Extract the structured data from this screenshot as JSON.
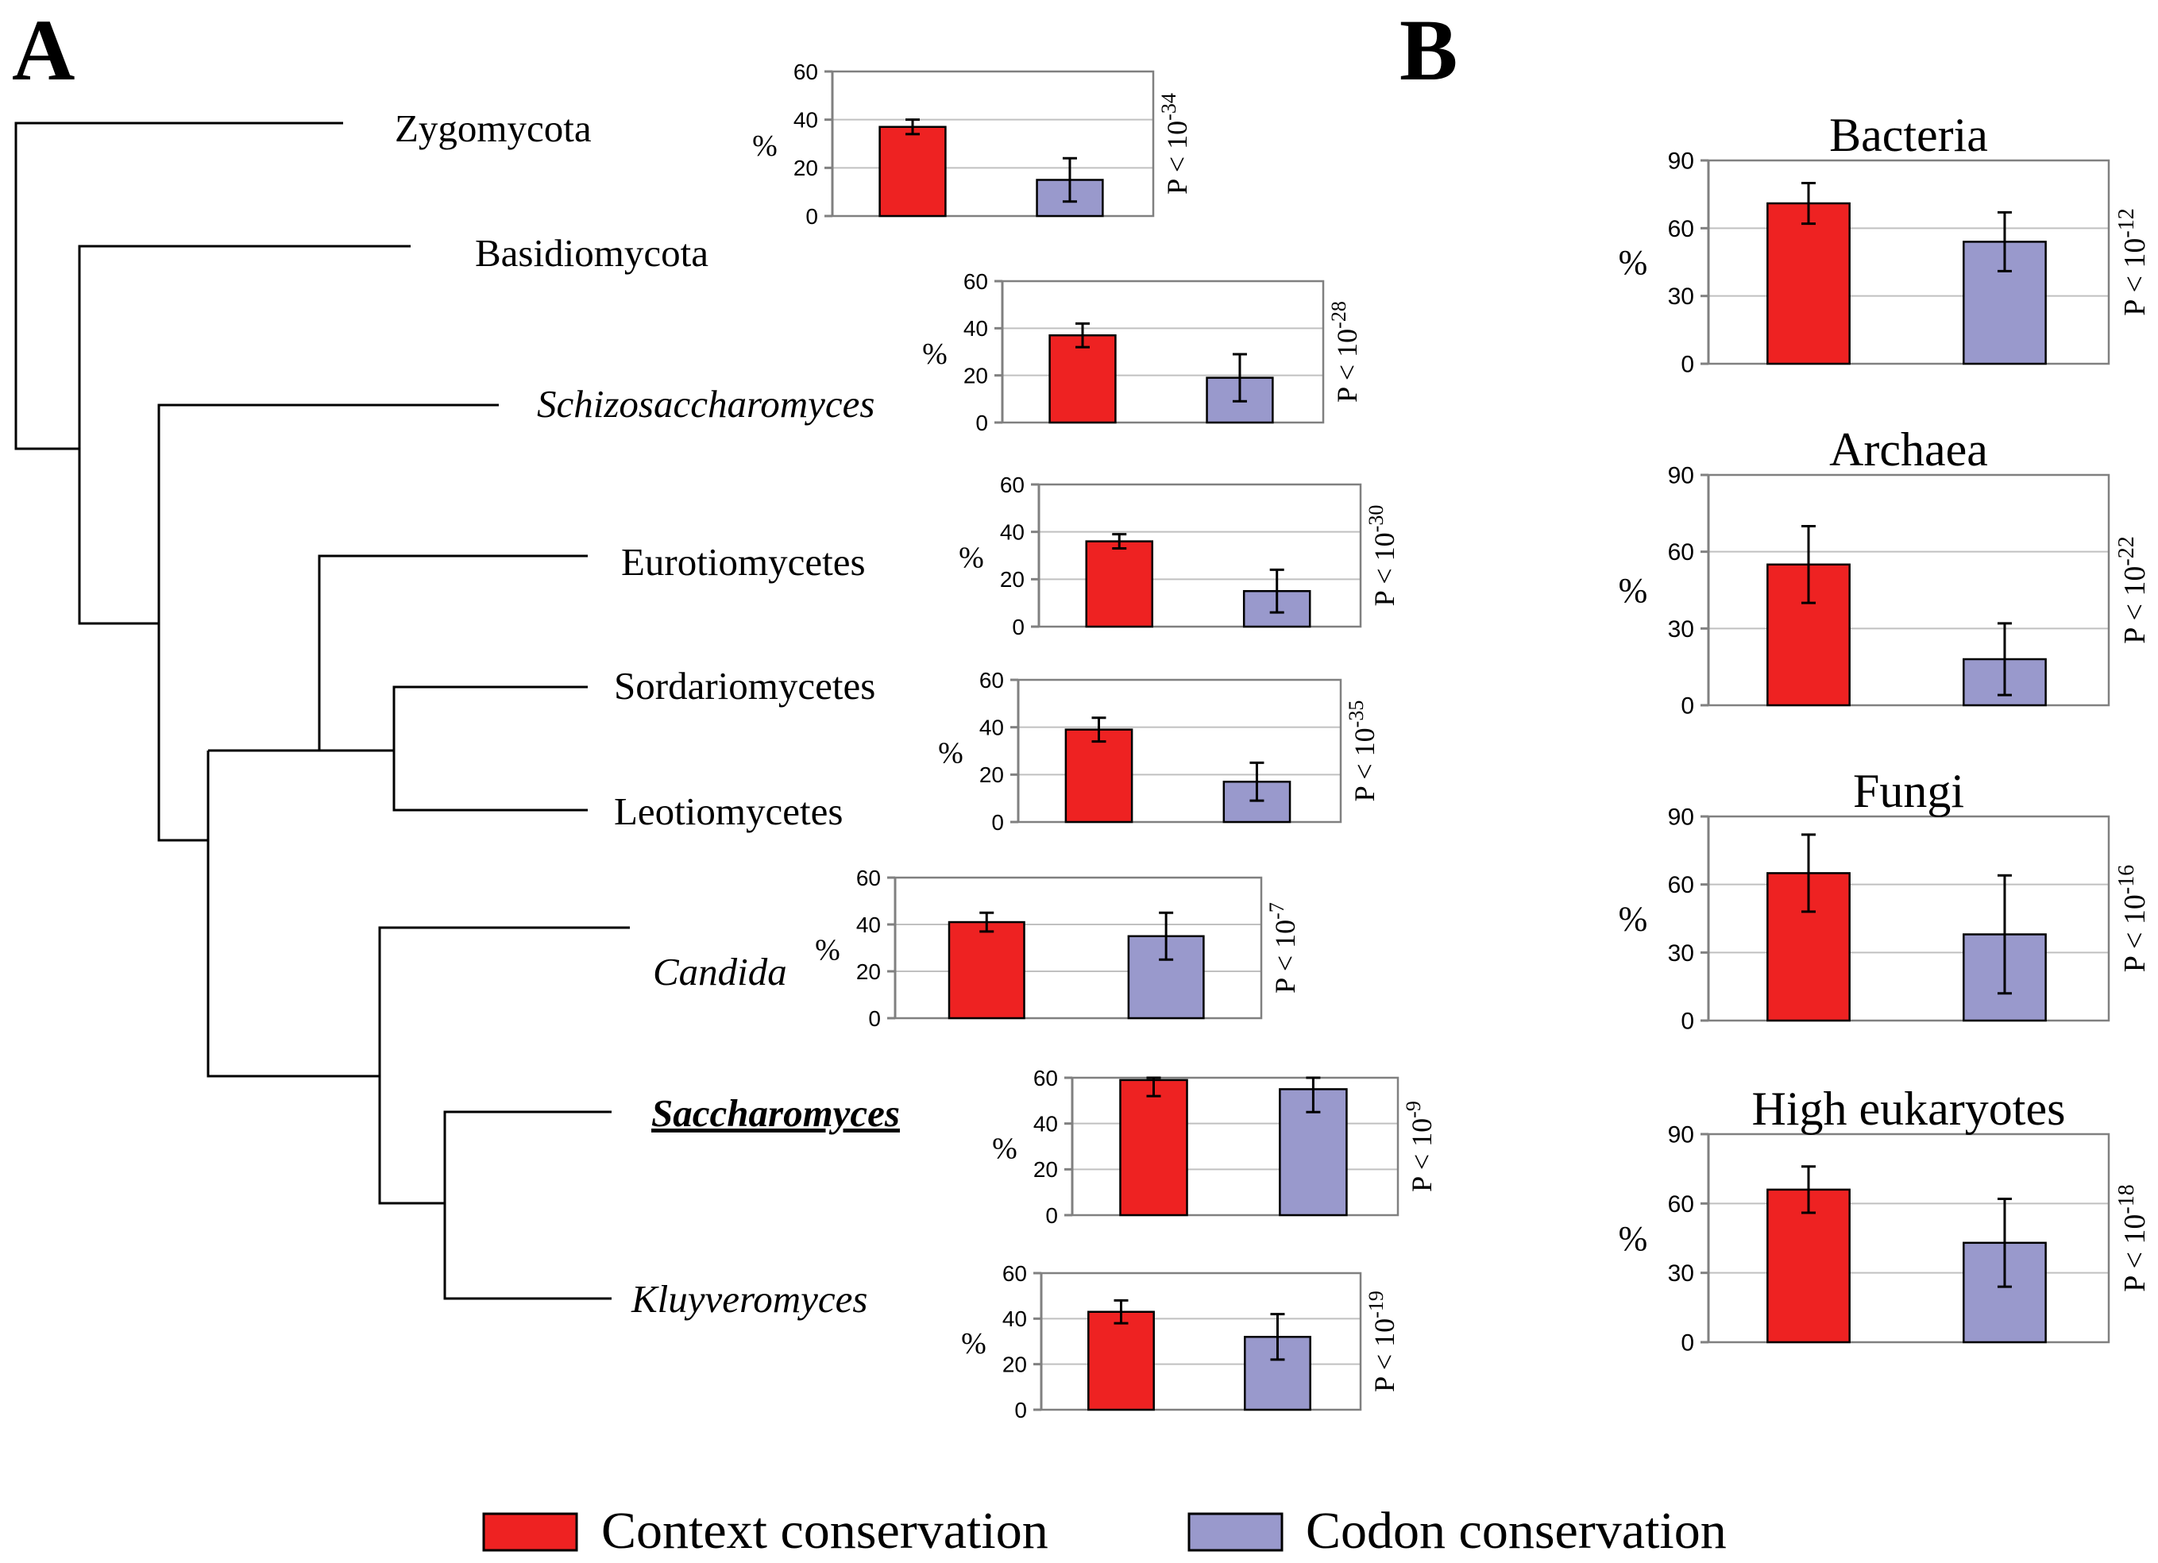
{
  "panel_labels": {
    "a": "A",
    "b": "B"
  },
  "colors": {
    "context": "#ee2222",
    "codon": "#9999cc",
    "frame": "#808080",
    "grid": "#c0c0c0",
    "line": "#000000"
  },
  "legend": {
    "context": "Context conservation",
    "codon": "Codon conservation"
  },
  "tree_taxa": [
    {
      "name": "Zygomycota",
      "italic": false,
      "bold": false
    },
    {
      "name": "Basidiomycota",
      "italic": false,
      "bold": false
    },
    {
      "name": "Schizosaccharomyces",
      "italic": true,
      "bold": false
    },
    {
      "name": "Eurotiomycetes",
      "italic": false,
      "bold": false
    },
    {
      "name": "Sordariomycetes",
      "italic": false,
      "bold": false
    },
    {
      "name": "Leotiomycetes",
      "italic": false,
      "bold": false
    },
    {
      "name": "Candida",
      "italic": true,
      "bold": false
    },
    {
      "name": "Saccharomyces",
      "italic": true,
      "bold": true,
      "underline": true
    },
    {
      "name": "Kluyveromyces",
      "italic": true,
      "bold": false
    },
    {
      "name": "",
      "italic": false,
      "bold": false
    }
  ],
  "chart_data": [
    {
      "type": "bar",
      "panel": "A",
      "ylabel": "%",
      "ylim": [
        0,
        60
      ],
      "yticks": [
        0,
        20,
        40,
        60
      ],
      "grid": true,
      "categories": [
        "Context conservation",
        "Codon conservation"
      ],
      "values": [
        37,
        15
      ],
      "errors": [
        3,
        9
      ],
      "pvalue": {
        "text": "P < 10",
        "exp": "-34"
      }
    },
    {
      "type": "bar",
      "panel": "A",
      "ylabel": "%",
      "ylim": [
        0,
        60
      ],
      "yticks": [
        0,
        20,
        40,
        60
      ],
      "grid": true,
      "categories": [
        "Context conservation",
        "Codon conservation"
      ],
      "values": [
        37,
        19
      ],
      "errors": [
        5,
        10
      ],
      "pvalue": {
        "text": "P < 10",
        "exp": "-28"
      }
    },
    {
      "type": "bar",
      "panel": "A",
      "ylabel": "%",
      "ylim": [
        0,
        60
      ],
      "yticks": [
        0,
        20,
        40,
        60
      ],
      "grid": true,
      "categories": [
        "Context conservation",
        "Codon conservation"
      ],
      "values": [
        36,
        15
      ],
      "errors": [
        3,
        9
      ],
      "pvalue": {
        "text": "P < 10",
        "exp": "-30"
      }
    },
    {
      "type": "bar",
      "panel": "A",
      "ylabel": "%",
      "ylim": [
        0,
        60
      ],
      "yticks": [
        0,
        20,
        40,
        60
      ],
      "grid": true,
      "categories": [
        "Context conservation",
        "Codon conservation"
      ],
      "values": [
        39,
        17
      ],
      "errors": [
        5,
        8
      ],
      "pvalue": {
        "text": "P < 10",
        "exp": "-35"
      }
    },
    {
      "type": "bar",
      "panel": "A",
      "ylabel": "%",
      "ylim": [
        0,
        60
      ],
      "yticks": [
        0,
        20,
        40,
        60
      ],
      "grid": true,
      "categories": [
        "Context conservation",
        "Codon conservation"
      ],
      "values": [
        41,
        35
      ],
      "errors": [
        4,
        10
      ],
      "pvalue": {
        "text": "P < 10",
        "exp": "-7"
      }
    },
    {
      "type": "bar",
      "panel": "A",
      "ylabel": "%",
      "ylim": [
        0,
        60
      ],
      "yticks": [
        0,
        20,
        40,
        60
      ],
      "grid": true,
      "categories": [
        "Context conservation",
        "Codon conservation"
      ],
      "values": [
        59,
        55
      ],
      "errors": [
        7,
        10
      ],
      "pvalue": {
        "text": "P < 10",
        "exp": "-9"
      }
    },
    {
      "type": "bar",
      "panel": "A",
      "ylabel": "%",
      "ylim": [
        0,
        60
      ],
      "yticks": [
        0,
        20,
        40,
        60
      ],
      "grid": true,
      "categories": [
        "Context conservation",
        "Codon conservation"
      ],
      "values": [
        43,
        32
      ],
      "errors": [
        5,
        10
      ],
      "pvalue": {
        "text": "P < 10",
        "exp": "-19"
      }
    },
    {
      "type": "bar",
      "panel": "B",
      "title": "Bacteria",
      "ylabel": "%",
      "ylim": [
        0,
        90
      ],
      "yticks": [
        0,
        30,
        60,
        90
      ],
      "grid": true,
      "categories": [
        "Context conservation",
        "Codon conservation"
      ],
      "values": [
        71,
        54
      ],
      "errors": [
        9,
        13
      ],
      "pvalue": {
        "text": "P < 10",
        "exp": "-12"
      }
    },
    {
      "type": "bar",
      "panel": "B",
      "title": "Archaea",
      "ylabel": "%",
      "ylim": [
        0,
        90
      ],
      "yticks": [
        0,
        30,
        60,
        90
      ],
      "grid": true,
      "categories": [
        "Context conservation",
        "Codon conservation"
      ],
      "values": [
        55,
        18
      ],
      "errors": [
        15,
        14
      ],
      "pvalue": {
        "text": "P < 10",
        "exp": "-22"
      }
    },
    {
      "type": "bar",
      "panel": "B",
      "title": "Fungi",
      "ylabel": "%",
      "ylim": [
        0,
        90
      ],
      "yticks": [
        0,
        30,
        60,
        90
      ],
      "grid": true,
      "categories": [
        "Context conservation",
        "Codon conservation"
      ],
      "values": [
        65,
        38
      ],
      "errors": [
        17,
        26
      ],
      "pvalue": {
        "text": "P < 10",
        "exp": "-16"
      }
    },
    {
      "type": "bar",
      "panel": "B",
      "title": "High eukaryotes",
      "ylabel": "%",
      "ylim": [
        0,
        90
      ],
      "yticks": [
        0,
        30,
        60,
        90
      ],
      "grid": true,
      "categories": [
        "Context conservation",
        "Codon conservation"
      ],
      "values": [
        66,
        43
      ],
      "errors": [
        10,
        19
      ],
      "pvalue": {
        "text": "P < 10",
        "exp": "-18"
      }
    }
  ]
}
